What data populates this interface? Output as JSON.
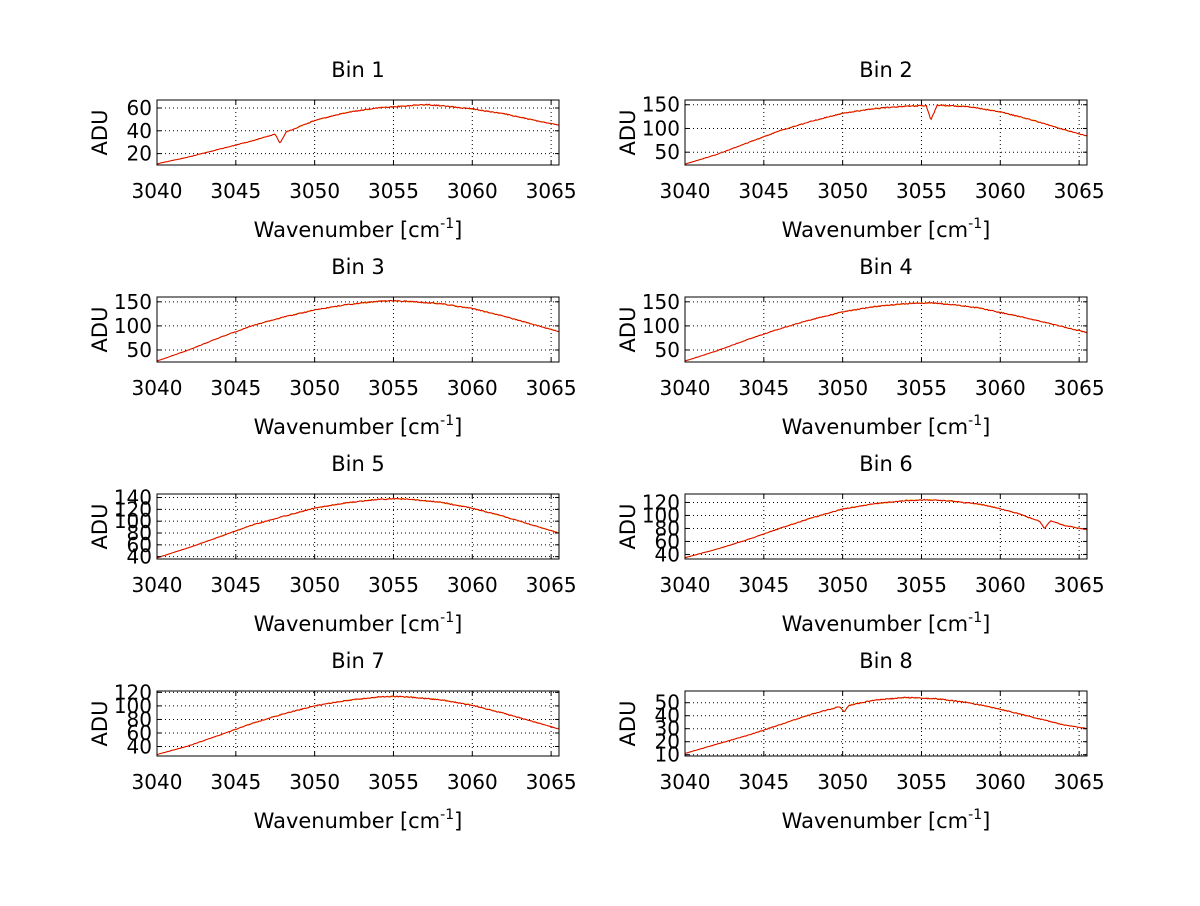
{
  "colors": {
    "series_a": "#e8c800",
    "series_b": "#e00000",
    "axis": "#000000",
    "grid": "#000000",
    "background": "#ffffff"
  },
  "chart_data": [
    {
      "type": "line",
      "title": "Bin 1",
      "xlabel": "Wavenumber [cm",
      "xlabel_sup": "-1",
      "xlabel_end": "]",
      "ylabel": "ADU",
      "xlim": [
        3040,
        3065.5
      ],
      "ylim": [
        10,
        67
      ],
      "grid": true,
      "xticks": [
        3040,
        3045,
        3050,
        3055,
        3060,
        3065
      ],
      "yticks": [
        20,
        40,
        60
      ],
      "x": [
        3040,
        3042,
        3044,
        3046,
        3047.5,
        3047.8,
        3048.2,
        3050,
        3052,
        3054,
        3056,
        3057,
        3058,
        3060,
        3062,
        3064,
        3065.5
      ],
      "y": [
        11,
        17,
        24,
        31,
        37,
        29,
        39,
        49,
        56,
        60,
        62,
        63,
        62,
        59,
        55,
        49,
        45
      ]
    },
    {
      "type": "line",
      "title": "Bin 2",
      "xlabel": "Wavenumber [cm",
      "xlabel_sup": "-1",
      "xlabel_end": "]",
      "ylabel": "ADU",
      "xlim": [
        3040,
        3065.5
      ],
      "ylim": [
        23,
        160
      ],
      "grid": true,
      "xticks": [
        3040,
        3045,
        3050,
        3055,
        3060,
        3065
      ],
      "yticks": [
        50,
        100,
        150
      ],
      "x": [
        3040,
        3042,
        3044,
        3046,
        3048,
        3050,
        3052,
        3054,
        3055.3,
        3055.6,
        3056,
        3058,
        3060,
        3062,
        3064,
        3065.5
      ],
      "y": [
        25,
        45,
        70,
        95,
        115,
        132,
        142,
        147,
        148,
        118,
        149,
        146,
        135,
        118,
        98,
        84
      ]
    },
    {
      "type": "line",
      "title": "Bin 3",
      "xlabel": "Wavenumber [cm",
      "xlabel_sup": "-1",
      "xlabel_end": "]",
      "ylabel": "ADU",
      "xlim": [
        3040,
        3065.5
      ],
      "ylim": [
        25,
        160
      ],
      "grid": true,
      "xticks": [
        3040,
        3045,
        3050,
        3055,
        3060,
        3065
      ],
      "yticks": [
        50,
        100,
        150
      ],
      "x": [
        3040,
        3042,
        3044,
        3046,
        3048,
        3050,
        3052,
        3054,
        3055,
        3056,
        3058,
        3060,
        3062,
        3064,
        3065.5
      ],
      "y": [
        27,
        50,
        76,
        100,
        118,
        133,
        144,
        151,
        152,
        151,
        146,
        136,
        120,
        102,
        88
      ]
    },
    {
      "type": "line",
      "title": "Bin 4",
      "xlabel": "Wavenumber [cm",
      "xlabel_sup": "-1",
      "xlabel_end": "]",
      "ylabel": "ADU",
      "xlim": [
        3040,
        3065.5
      ],
      "ylim": [
        25,
        160
      ],
      "grid": true,
      "xticks": [
        3040,
        3045,
        3050,
        3055,
        3060,
        3065
      ],
      "yticks": [
        50,
        100,
        150
      ],
      "x": [
        3040,
        3042,
        3044,
        3046,
        3048,
        3050,
        3052,
        3054,
        3055.5,
        3057,
        3058.5,
        3060,
        3062,
        3064,
        3065.5
      ],
      "y": [
        27,
        48,
        72,
        94,
        113,
        129,
        140,
        146,
        148,
        144,
        138,
        128,
        114,
        98,
        86
      ]
    },
    {
      "type": "line",
      "title": "Bin 5",
      "xlabel": "Wavenumber [cm",
      "xlabel_sup": "-1",
      "xlabel_end": "]",
      "ylabel": "ADU",
      "xlim": [
        3040,
        3065.5
      ],
      "ylim": [
        36,
        146
      ],
      "grid": true,
      "xticks": [
        3040,
        3045,
        3050,
        3055,
        3060,
        3065
      ],
      "yticks": [
        40,
        60,
        80,
        100,
        120,
        140
      ],
      "ytick_labels": [
        "40",
        "60",
        "80",
        "100",
        "120",
        "140"
      ],
      "x": [
        3040,
        3042,
        3044,
        3046,
        3048,
        3050,
        3052,
        3054,
        3055,
        3056,
        3058,
        3060,
        3062,
        3064,
        3065.5
      ],
      "y": [
        38,
        55,
        74,
        93,
        108,
        122,
        131,
        137,
        138,
        137,
        132,
        122,
        108,
        92,
        80
      ]
    },
    {
      "type": "line",
      "title": "Bin 6",
      "xlabel": "Wavenumber [cm",
      "xlabel_sup": "-1",
      "xlabel_end": "]",
      "ylabel": "ADU",
      "xlim": [
        3040,
        3065.5
      ],
      "ylim": [
        33,
        133
      ],
      "grid": true,
      "xticks": [
        3040,
        3045,
        3050,
        3055,
        3060,
        3065
      ],
      "yticks": [
        40,
        60,
        80,
        100,
        120
      ],
      "x": [
        3040,
        3042,
        3044,
        3046,
        3048,
        3050,
        3052,
        3054,
        3055.5,
        3057,
        3059,
        3061,
        3062.5,
        3062.8,
        3063.2,
        3064,
        3065.5
      ],
      "y": [
        35,
        48,
        63,
        80,
        96,
        110,
        118,
        123,
        124,
        122,
        116,
        104,
        91,
        80,
        92,
        85,
        78
      ]
    },
    {
      "type": "line",
      "title": "Bin 7",
      "xlabel": "Wavenumber [cm",
      "xlabel_sup": "-1",
      "xlabel_end": "]",
      "ylabel": "ADU",
      "xlim": [
        3040,
        3065.5
      ],
      "ylim": [
        26,
        122
      ],
      "grid": true,
      "xticks": [
        3040,
        3045,
        3050,
        3055,
        3060,
        3065
      ],
      "yticks": [
        40,
        60,
        80,
        100,
        120
      ],
      "x": [
        3040,
        3042,
        3044,
        3046,
        3048,
        3050,
        3052,
        3054,
        3055,
        3056,
        3058,
        3060,
        3062,
        3064,
        3065.5
      ],
      "y": [
        28,
        41,
        57,
        74,
        88,
        100,
        108,
        113,
        114,
        113,
        109,
        101,
        89,
        76,
        66
      ]
    },
    {
      "type": "line",
      "title": "Bin 8",
      "xlabel": "Wavenumber [cm",
      "xlabel_sup": "-1",
      "xlabel_end": "]",
      "ylabel": "ADU",
      "xlim": [
        3040,
        3065.5
      ],
      "ylim": [
        9,
        59
      ],
      "grid": true,
      "xticks": [
        3040,
        3045,
        3050,
        3055,
        3060,
        3065
      ],
      "yticks": [
        10,
        20,
        30,
        40,
        50
      ],
      "ytick_labels": [
        "10",
        "20",
        "30",
        "40",
        "50"
      ],
      "x": [
        3040,
        3042,
        3044,
        3046,
        3048,
        3049.8,
        3050.1,
        3050.4,
        3052,
        3054,
        3056,
        3058,
        3060,
        3062,
        3064,
        3065.5
      ],
      "y": [
        11,
        18,
        25,
        33,
        41,
        47,
        43,
        48,
        52,
        54,
        53,
        50,
        45,
        39,
        33,
        30
      ]
    }
  ]
}
